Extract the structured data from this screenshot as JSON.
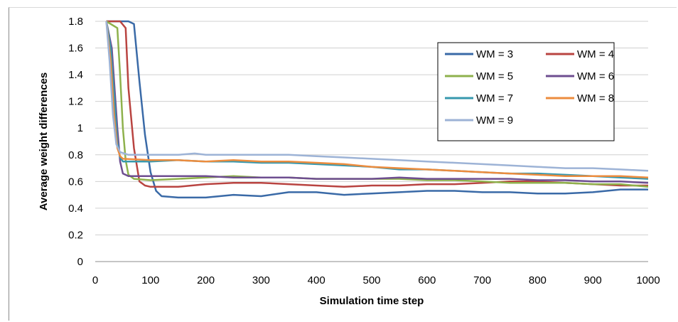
{
  "chart_data": {
    "type": "line",
    "xlabel": "Simulation time step",
    "ylabel": "Average weight differences",
    "xlim": [
      0,
      1000
    ],
    "ylim": [
      0,
      1.8
    ],
    "x_ticks": [
      "0",
      "100",
      "200",
      "300",
      "400",
      "500",
      "600",
      "700",
      "800",
      "900",
      "1000"
    ],
    "y_ticks": [
      "0",
      "0.2",
      "0.4",
      "0.6",
      "0.8",
      "1",
      "1.2",
      "1.4",
      "1.6",
      "1.8"
    ],
    "grid": "horizontal",
    "legend_position": "top-right",
    "series": [
      {
        "name": "WM = 3",
        "color": "#3a6aa7",
        "points": [
          [
            20,
            1.8
          ],
          [
            40,
            1.8
          ],
          [
            60,
            1.8
          ],
          [
            70,
            1.78
          ],
          [
            80,
            1.35
          ],
          [
            90,
            0.95
          ],
          [
            100,
            0.67
          ],
          [
            110,
            0.53
          ],
          [
            120,
            0.49
          ],
          [
            150,
            0.48
          ],
          [
            200,
            0.48
          ],
          [
            250,
            0.5
          ],
          [
            300,
            0.49
          ],
          [
            350,
            0.52
          ],
          [
            400,
            0.52
          ],
          [
            450,
            0.5
          ],
          [
            500,
            0.51
          ],
          [
            550,
            0.52
          ],
          [
            600,
            0.53
          ],
          [
            650,
            0.53
          ],
          [
            700,
            0.52
          ],
          [
            750,
            0.52
          ],
          [
            800,
            0.51
          ],
          [
            850,
            0.51
          ],
          [
            900,
            0.52
          ],
          [
            950,
            0.54
          ],
          [
            1000,
            0.54
          ]
        ]
      },
      {
        "name": "WM = 4",
        "color": "#b94441",
        "points": [
          [
            20,
            1.8
          ],
          [
            45,
            1.8
          ],
          [
            55,
            1.75
          ],
          [
            60,
            1.3
          ],
          [
            70,
            0.85
          ],
          [
            80,
            0.6
          ],
          [
            90,
            0.57
          ],
          [
            100,
            0.56
          ],
          [
            150,
            0.56
          ],
          [
            200,
            0.58
          ],
          [
            250,
            0.59
          ],
          [
            300,
            0.59
          ],
          [
            350,
            0.58
          ],
          [
            400,
            0.57
          ],
          [
            450,
            0.56
          ],
          [
            500,
            0.57
          ],
          [
            550,
            0.57
          ],
          [
            600,
            0.58
          ],
          [
            650,
            0.58
          ],
          [
            700,
            0.59
          ],
          [
            750,
            0.6
          ],
          [
            800,
            0.6
          ],
          [
            850,
            0.59
          ],
          [
            900,
            0.58
          ],
          [
            950,
            0.57
          ],
          [
            1000,
            0.57
          ]
        ]
      },
      {
        "name": "WM = 5",
        "color": "#8eb14c",
        "points": [
          [
            20,
            1.8
          ],
          [
            40,
            1.75
          ],
          [
            45,
            1.4
          ],
          [
            50,
            1.0
          ],
          [
            55,
            0.76
          ],
          [
            60,
            0.65
          ],
          [
            70,
            0.62
          ],
          [
            100,
            0.61
          ],
          [
            150,
            0.62
          ],
          [
            200,
            0.63
          ],
          [
            250,
            0.64
          ],
          [
            300,
            0.63
          ],
          [
            350,
            0.63
          ],
          [
            400,
            0.62
          ],
          [
            450,
            0.62
          ],
          [
            500,
            0.62
          ],
          [
            550,
            0.62
          ],
          [
            600,
            0.61
          ],
          [
            650,
            0.61
          ],
          [
            700,
            0.6
          ],
          [
            750,
            0.59
          ],
          [
            800,
            0.59
          ],
          [
            850,
            0.59
          ],
          [
            900,
            0.58
          ],
          [
            950,
            0.58
          ],
          [
            1000,
            0.56
          ]
        ]
      },
      {
        "name": "WM = 6",
        "color": "#6e4e90",
        "points": [
          [
            20,
            1.8
          ],
          [
            30,
            1.6
          ],
          [
            40,
            1.0
          ],
          [
            45,
            0.75
          ],
          [
            50,
            0.66
          ],
          [
            60,
            0.64
          ],
          [
            100,
            0.64
          ],
          [
            150,
            0.64
          ],
          [
            200,
            0.64
          ],
          [
            250,
            0.63
          ],
          [
            300,
            0.63
          ],
          [
            350,
            0.63
          ],
          [
            400,
            0.62
          ],
          [
            450,
            0.62
          ],
          [
            500,
            0.62
          ],
          [
            550,
            0.63
          ],
          [
            600,
            0.62
          ],
          [
            650,
            0.62
          ],
          [
            700,
            0.62
          ],
          [
            750,
            0.62
          ],
          [
            800,
            0.61
          ],
          [
            850,
            0.61
          ],
          [
            900,
            0.6
          ],
          [
            950,
            0.6
          ],
          [
            1000,
            0.59
          ]
        ]
      },
      {
        "name": "WM = 7",
        "color": "#3798ae",
        "points": [
          [
            20,
            1.8
          ],
          [
            28,
            1.6
          ],
          [
            35,
            1.2
          ],
          [
            40,
            0.9
          ],
          [
            45,
            0.78
          ],
          [
            50,
            0.75
          ],
          [
            100,
            0.75
          ],
          [
            150,
            0.76
          ],
          [
            200,
            0.75
          ],
          [
            250,
            0.75
          ],
          [
            300,
            0.74
          ],
          [
            350,
            0.74
          ],
          [
            400,
            0.73
          ],
          [
            450,
            0.72
          ],
          [
            500,
            0.71
          ],
          [
            550,
            0.69
          ],
          [
            600,
            0.69
          ],
          [
            650,
            0.68
          ],
          [
            700,
            0.67
          ],
          [
            750,
            0.66
          ],
          [
            800,
            0.66
          ],
          [
            850,
            0.65
          ],
          [
            900,
            0.64
          ],
          [
            950,
            0.63
          ],
          [
            1000,
            0.62
          ]
        ]
      },
      {
        "name": "WM = 8",
        "color": "#ec8c3e",
        "points": [
          [
            20,
            1.8
          ],
          [
            28,
            1.5
          ],
          [
            34,
            1.1
          ],
          [
            40,
            0.85
          ],
          [
            45,
            0.79
          ],
          [
            50,
            0.77
          ],
          [
            100,
            0.76
          ],
          [
            150,
            0.76
          ],
          [
            200,
            0.75
          ],
          [
            250,
            0.76
          ],
          [
            300,
            0.75
          ],
          [
            350,
            0.75
          ],
          [
            400,
            0.74
          ],
          [
            450,
            0.73
          ],
          [
            500,
            0.71
          ],
          [
            550,
            0.7
          ],
          [
            600,
            0.69
          ],
          [
            650,
            0.68
          ],
          [
            700,
            0.67
          ],
          [
            750,
            0.66
          ],
          [
            800,
            0.65
          ],
          [
            850,
            0.64
          ],
          [
            900,
            0.64
          ],
          [
            950,
            0.64
          ],
          [
            1000,
            0.63
          ]
        ]
      },
      {
        "name": "WM = 9",
        "color": "#9db3d6",
        "points": [
          [
            20,
            1.8
          ],
          [
            26,
            1.5
          ],
          [
            32,
            1.1
          ],
          [
            38,
            0.88
          ],
          [
            45,
            0.82
          ],
          [
            60,
            0.8
          ],
          [
            100,
            0.8
          ],
          [
            150,
            0.8
          ],
          [
            180,
            0.81
          ],
          [
            200,
            0.8
          ],
          [
            250,
            0.8
          ],
          [
            300,
            0.8
          ],
          [
            350,
            0.8
          ],
          [
            400,
            0.79
          ],
          [
            450,
            0.78
          ],
          [
            500,
            0.77
          ],
          [
            550,
            0.76
          ],
          [
            600,
            0.75
          ],
          [
            650,
            0.74
          ],
          [
            700,
            0.73
          ],
          [
            750,
            0.72
          ],
          [
            800,
            0.71
          ],
          [
            850,
            0.7
          ],
          [
            900,
            0.7
          ],
          [
            950,
            0.69
          ],
          [
            1000,
            0.68
          ]
        ]
      }
    ]
  }
}
